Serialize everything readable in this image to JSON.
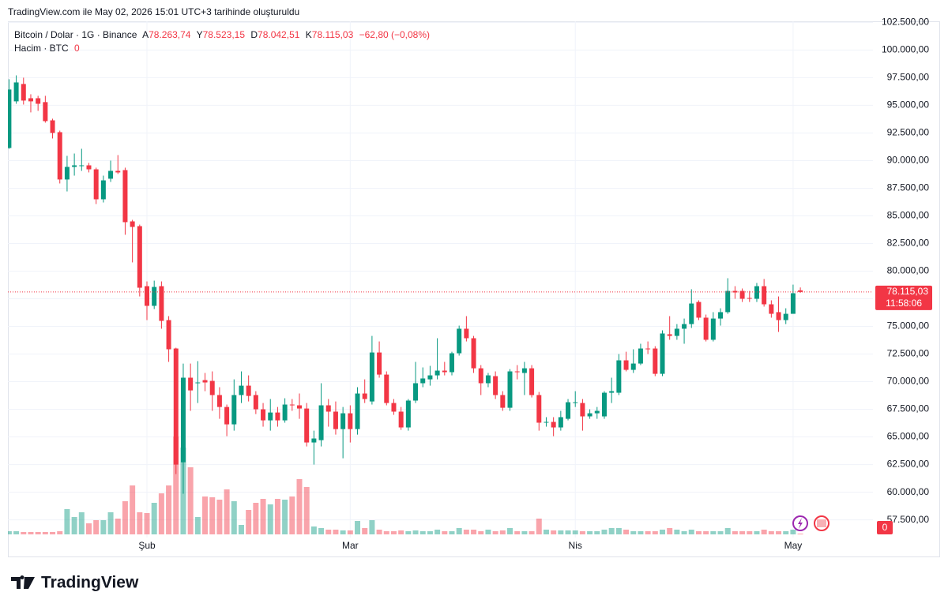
{
  "header": {
    "text": "TradingView.com ile May 02, 2026 15:01 UTC+3 tarihinde oluşturuldu"
  },
  "footer": {
    "logo": "TradingView"
  },
  "chart_data": {
    "type": "candlestick",
    "title": "Bitcoin / Dolar · 1G · Binance",
    "legend": {
      "open_key": "A",
      "open": "78.263,74",
      "high_key": "Y",
      "high": "78.523,15",
      "low_key": "D",
      "low": "78.042,51",
      "close_key": "K",
      "close": "78.115,03",
      "change": "−62,80 (−0,08%)"
    },
    "last_price_label": "78.115,03",
    "countdown": "11:58:06",
    "up_color": "#089981",
    "down_color": "#f23645",
    "grid": true,
    "categories": [
      null,
      null,
      null,
      null,
      null,
      null,
      null,
      null,
      null,
      null,
      null,
      null,
      null,
      null,
      null,
      null,
      null,
      null,
      null,
      "Şub",
      null,
      null,
      null,
      null,
      null,
      null,
      null,
      null,
      null,
      null,
      null,
      null,
      null,
      null,
      null,
      null,
      null,
      null,
      null,
      null,
      null,
      null,
      null,
      null,
      null,
      null,
      null,
      "Mar",
      null,
      null,
      null,
      null,
      null,
      null,
      null,
      null,
      null,
      null,
      null,
      null,
      null,
      null,
      null,
      null,
      null,
      null,
      null,
      null,
      null,
      null,
      null,
      null,
      null,
      null,
      null,
      null,
      null,
      null,
      "Nis",
      null,
      null,
      null,
      null,
      null,
      null,
      null,
      null,
      null,
      null,
      null,
      null,
      null,
      null,
      null,
      null,
      null,
      null,
      null,
      null,
      null,
      null,
      null,
      null,
      null,
      null,
      null,
      null,
      null,
      "May",
      null
    ],
    "open": [
      91140,
      95360,
      96930,
      95640,
      95640,
      95290,
      93640,
      92570,
      88290,
      89430,
      89500,
      89570,
      89210,
      86500,
      88360,
      89070,
      89140,
      84500,
      84070,
      78640,
      76860,
      78640,
      75570,
      73000,
      62710,
      70360,
      69860,
      70140,
      70070,
      68790,
      67710,
      66140,
      68790,
      69640,
      68790,
      67500,
      66500,
      67210,
      66500,
      67930,
      67860,
      67570,
      64500,
      64710,
      67860,
      67290,
      65710,
      67140,
      65710,
      68930,
      68210,
      72640,
      70640,
      68070,
      67290,
      65860,
      68290,
      69860,
      70210,
      70570,
      71000,
      70860,
      72570,
      74790,
      73930,
      71210,
      69860,
      70500,
      68790,
      67640,
      70930,
      70790,
      71210,
      68790,
      66290,
      66360,
      65860,
      66640,
      68070,
      68070,
      66860,
      67140,
      66860,
      69000,
      69000,
      71930,
      71070,
      71640,
      73000,
      73000,
      70710,
      74290,
      74140,
      74790,
      75210,
      77210,
      75790,
      73790,
      75710,
      76290,
      78210,
      78210,
      77570,
      77500,
      78640,
      77000,
      76290,
      75570,
      76140,
      78263.74
    ],
    "high": [
      97360,
      97710,
      97500,
      96000,
      95860,
      95860,
      93790,
      92710,
      90430,
      90640,
      91070,
      89790,
      89360,
      88640,
      90000,
      90500,
      89360,
      84640,
      84210,
      79070,
      79140,
      79070,
      75930,
      73070,
      71640,
      71640,
      71860,
      70790,
      70930,
      69500,
      67930,
      70210,
      70930,
      70570,
      69140,
      68070,
      68430,
      67710,
      68500,
      68430,
      68930,
      68070,
      65570,
      69860,
      68430,
      68210,
      67710,
      67860,
      69500,
      70210,
      74140,
      73640,
      70930,
      68430,
      67710,
      68430,
      71790,
      71290,
      71430,
      73930,
      71790,
      72710,
      75070,
      75930,
      74140,
      71500,
      70790,
      70930,
      69140,
      71140,
      71500,
      71790,
      71500,
      69070,
      66790,
      66790,
      67360,
      68430,
      69140,
      68430,
      67500,
      67710,
      69140,
      70360,
      72500,
      72710,
      72930,
      73430,
      73640,
      73210,
      74640,
      75930,
      75210,
      75710,
      78360,
      77360,
      76070,
      76290,
      76640,
      79360,
      78640,
      78430,
      78210,
      78930,
      79290,
      77360,
      77710,
      76640,
      78780,
      78523.15
    ],
    "low": [
      91070,
      95140,
      95070,
      94360,
      94500,
      93430,
      92000,
      87930,
      87210,
      88640,
      89070,
      88930,
      86070,
      86210,
      88070,
      88790,
      83290,
      80790,
      77710,
      75570,
      76570,
      74790,
      71790,
      61640,
      59860,
      67360,
      68070,
      69140,
      67360,
      66640,
      65070,
      65570,
      68070,
      68210,
      67070,
      65930,
      65570,
      65930,
      66290,
      67360,
      66640,
      64140,
      62500,
      64140,
      65930,
      65210,
      63070,
      64500,
      65210,
      68070,
      67930,
      70360,
      67860,
      67000,
      65640,
      65570,
      68070,
      69500,
      69640,
      70210,
      70570,
      70570,
      72360,
      73640,
      70790,
      68790,
      69500,
      68430,
      67360,
      67360,
      70210,
      68790,
      68570,
      65570,
      65930,
      65070,
      65570,
      66500,
      67710,
      65570,
      66640,
      66640,
      66640,
      68070,
      68790,
      70930,
      70790,
      71500,
      72500,
      70500,
      70500,
      73790,
      73790,
      73430,
      74860,
      75570,
      73640,
      73640,
      75070,
      76140,
      77500,
      77210,
      77210,
      77210,
      76790,
      75790,
      74500,
      75210,
      76140,
      78042.51
    ],
    "close": [
      96430,
      97070,
      95430,
      95360,
      95140,
      93570,
      92500,
      88290,
      89430,
      89570,
      89570,
      89210,
      86500,
      88210,
      89070,
      88930,
      84430,
      84000,
      78500,
      76860,
      78570,
      75500,
      72930,
      62500,
      70360,
      69210,
      69930,
      69930,
      68790,
      67710,
      66140,
      68790,
      69640,
      68710,
      67500,
      66500,
      67210,
      66500,
      67930,
      67860,
      67570,
      64500,
      64860,
      67860,
      67290,
      65710,
      67140,
      65710,
      68930,
      68430,
      72640,
      70640,
      68070,
      67290,
      65860,
      68290,
      69860,
      70290,
      70570,
      71000,
      70860,
      72570,
      74790,
      73930,
      71210,
      69860,
      70570,
      68790,
      67640,
      70930,
      70860,
      71210,
      68790,
      66290,
      66360,
      65860,
      66790,
      68140,
      68140,
      66860,
      67140,
      67360,
      69000,
      69140,
      71930,
      71070,
      71640,
      73000,
      72930,
      70710,
      74360,
      74140,
      74790,
      75210,
      77070,
      75790,
      73790,
      75710,
      76290,
      78210,
      78070,
      77500,
      77500,
      78640,
      77000,
      76140,
      75570,
      76140,
      78000,
      78115.03
    ],
    "ylim": [
      55900,
      102600
    ],
    "yticks": [
      {
        "value": 57500,
        "label": "57.500,00"
      },
      {
        "value": 60000,
        "label": "60.000,00"
      },
      {
        "value": 62500,
        "label": "62.500,00"
      },
      {
        "value": 65000,
        "label": "65.000,00"
      },
      {
        "value": 67500,
        "label": "67.500,00"
      },
      {
        "value": 70000,
        "label": "70.000,00"
      },
      {
        "value": 72500,
        "label": "72.500,00"
      },
      {
        "value": 75000,
        "label": "75.000,00"
      },
      {
        "value": 77500,
        "label": "77.500,00"
      },
      {
        "value": 80000,
        "label": "80.000,00"
      },
      {
        "value": 82500,
        "label": "82.500,00"
      },
      {
        "value": 85000,
        "label": "85.000,00"
      },
      {
        "value": 87500,
        "label": "87.500,00"
      },
      {
        "value": 90000,
        "label": "90.000,00"
      },
      {
        "value": 92500,
        "label": "92.500,00"
      },
      {
        "value": 95000,
        "label": "95.000,00"
      },
      {
        "value": 97500,
        "label": "97.500,00"
      },
      {
        "value": 100000,
        "label": "100.000,00"
      },
      {
        "value": 102500,
        "label": "102.500,00"
      }
    ],
    "volume": {
      "name": "Hacim · BTC",
      "last_label": "0",
      "up_color": "rgba(8,153,129,0.45)",
      "down_color": "rgba(242,54,69,0.45)",
      "ylim": [
        0,
        650000
      ],
      "values": [
        4000,
        4000,
        3000,
        3000,
        3000,
        3000,
        3000,
        4000,
        32000,
        22000,
        28000,
        14000,
        18000,
        18000,
        28000,
        20000,
        42000,
        62000,
        28000,
        27000,
        40000,
        52000,
        62000,
        124000,
        110000,
        85000,
        22000,
        48000,
        47000,
        44000,
        57000,
        42000,
        12000,
        31000,
        40000,
        45000,
        38000,
        45000,
        44000,
        48000,
        70000,
        60000,
        10000,
        8000,
        6000,
        6000,
        5000,
        5000,
        17000,
        8000,
        18000,
        6000,
        4000,
        4000,
        5000,
        4000,
        5000,
        4000,
        4000,
        6000,
        4000,
        4000,
        8000,
        6000,
        6000,
        4000,
        6000,
        4000,
        5000,
        8000,
        4000,
        4000,
        4000,
        20000,
        6000,
        5000,
        5000,
        5000,
        5000,
        4000,
        4000,
        4000,
        6000,
        8000,
        8000,
        6000,
        4000,
        4000,
        4000,
        4000,
        6000,
        8000,
        6000,
        4000,
        6000,
        4000,
        4000,
        4000,
        4000,
        8000,
        4000,
        4000,
        4000,
        4000,
        6000,
        4000,
        4000,
        4000,
        6000,
        1000
      ]
    }
  }
}
